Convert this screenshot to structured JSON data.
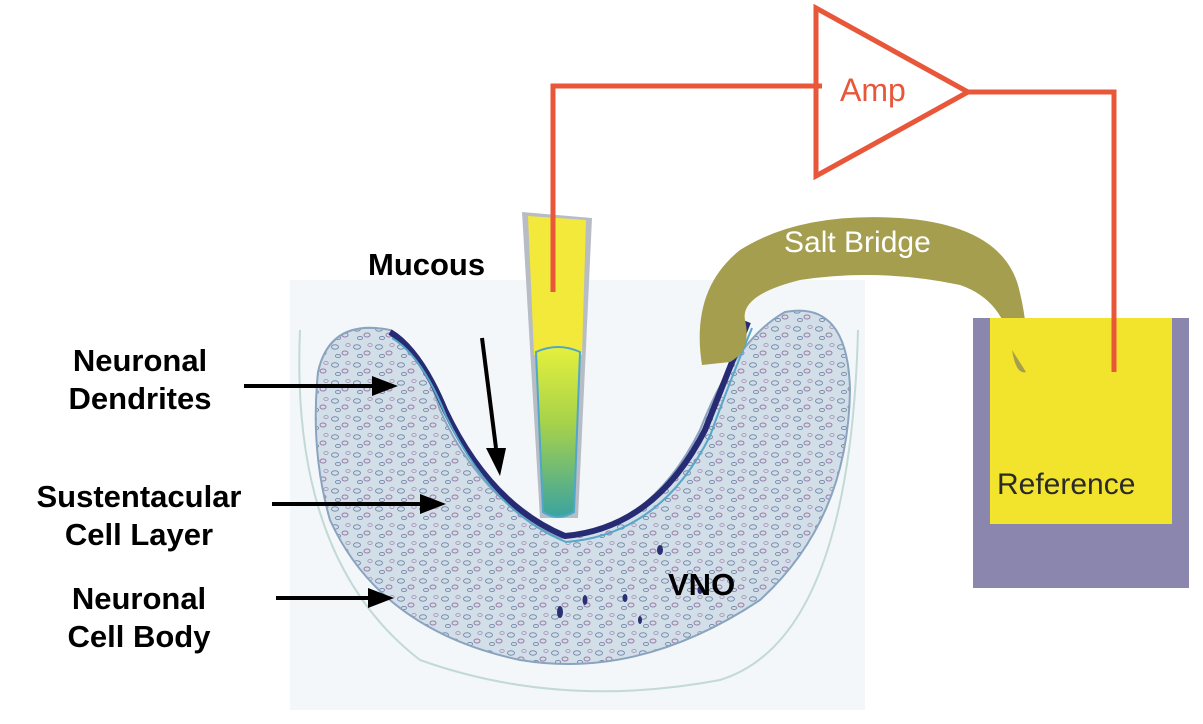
{
  "labels": {
    "amp": "Amp",
    "salt_bridge": "Salt Bridge",
    "reference": "Reference",
    "mucous": "Mucous",
    "neuronal_dendrites": [
      "Neuronal",
      "Dendrites"
    ],
    "sustentacular_layer": [
      "Sustentacular",
      "Cell Layer"
    ],
    "neuronal_cell_body": [
      "Neuronal",
      "Cell Body"
    ],
    "vno": "VNO"
  },
  "colors": {
    "circuit": "#e8573a",
    "electrode_fill": "#f2e93a",
    "electrode_tip_top": "#e2ef3e",
    "electrode_tip_bottom": "#3aa7a0",
    "salt_bridge": "#a59e4e",
    "beaker": "#8a86ad",
    "reference_fluid": "#f2e32c",
    "tissue_edge": "#2b2f7a",
    "tissue_body": "#c9d7e2"
  },
  "icons": {
    "amplifier": "triangle-amplifier-icon",
    "arrow": "arrow-right-icon"
  }
}
